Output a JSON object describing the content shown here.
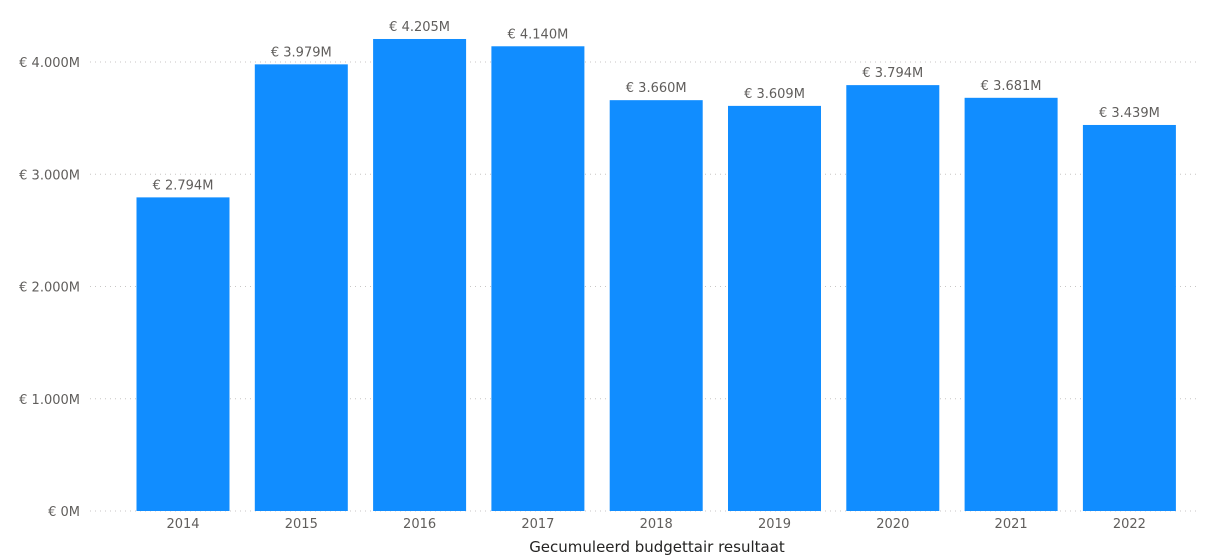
{
  "chart_data": {
    "type": "bar",
    "categories": [
      "2014",
      "2015",
      "2016",
      "2017",
      "2018",
      "2019",
      "2020",
      "2021",
      "2022"
    ],
    "values": [
      2794,
      3979,
      4205,
      4140,
      3660,
      3609,
      3794,
      3681,
      3439
    ],
    "value_unit": "thousand euro",
    "data_labels": [
      "€ 2.794M",
      "€ 3.979M",
      "€ 4.205M",
      "€ 4.140M",
      "€ 3.660M",
      "€ 3.609M",
      "€ 3.794M",
      "€ 3.681M",
      "€ 3.439M"
    ],
    "yticks": [
      0,
      1000,
      2000,
      3000,
      4000
    ],
    "ytick_labels": [
      "€ 0M",
      "€ 1.000M",
      "€ 2.000M",
      "€ 3.000M",
      "€ 4.000M"
    ],
    "ylim": [
      0,
      4000
    ],
    "xlabel": "Gecumuleerd budgettair resultaat",
    "ylabel": "",
    "title": "",
    "grid": true,
    "legend": "none",
    "colors": {
      "bar": "#118DFF",
      "gridline": "#C8C6C4",
      "label_text": "#605E5C",
      "axis_title_text": "#252423"
    }
  }
}
